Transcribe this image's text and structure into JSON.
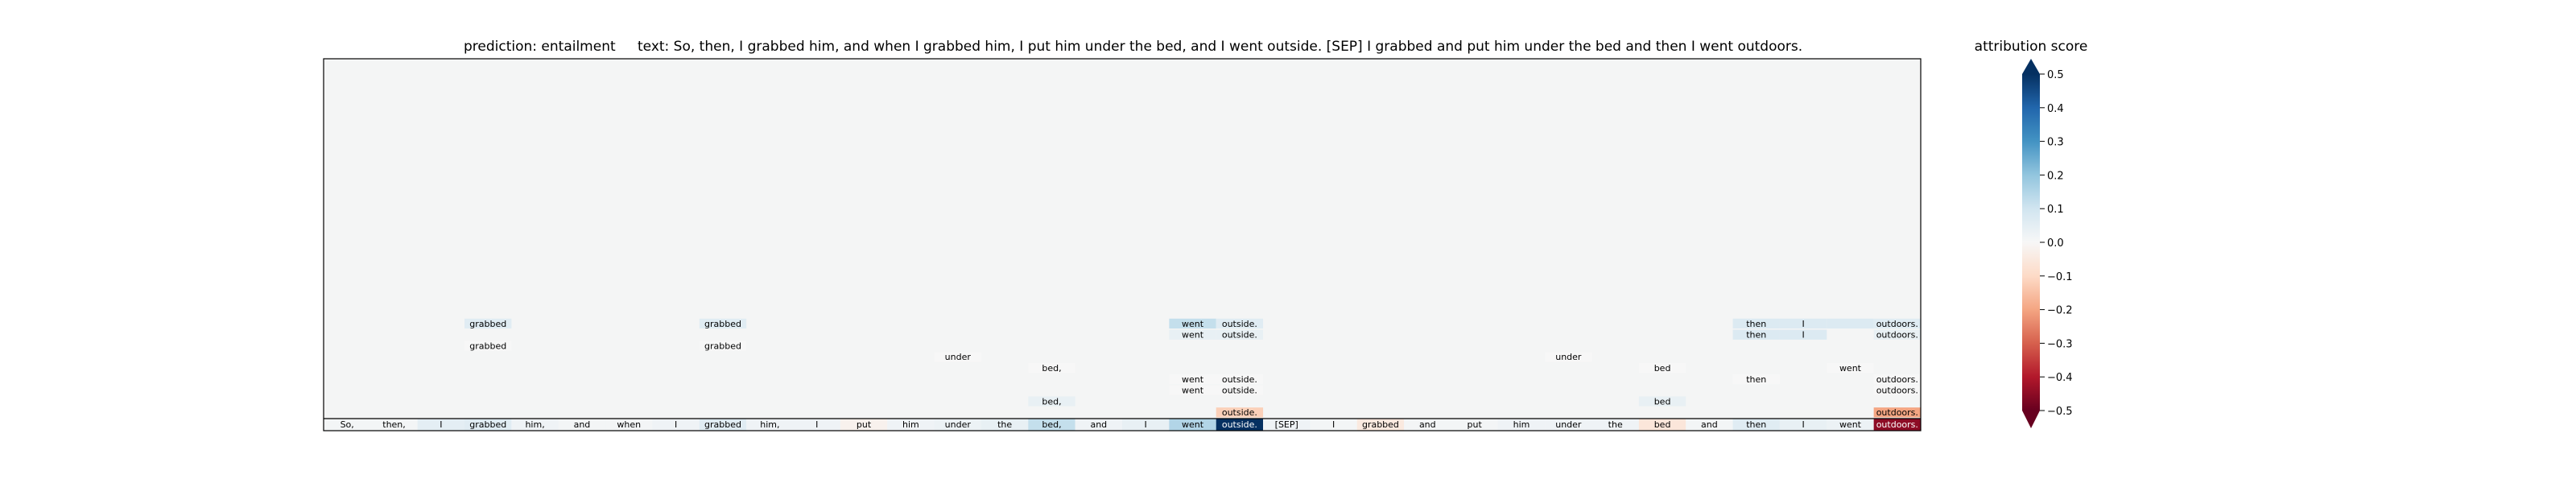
{
  "chart_data": {
    "type": "heatmap",
    "title_prediction": "prediction:  entailment",
    "title_text": "text:  So, then, I grabbed him, and when I grabbed him, I put him under the bed, and I went outside. [SEP] I grabbed and put him under the bed and then I went outdoors.",
    "colorbar_label": "attribution score",
    "colorbar_range": [
      -0.5,
      0.5
    ],
    "colorbar_ticks": [
      0.5,
      0.4,
      0.3,
      0.2,
      0.1,
      0.0,
      -0.1,
      -0.2,
      -0.3,
      -0.4,
      -0.5
    ],
    "colorbar_tick_labels": [
      "0.5",
      "0.4",
      "0.3",
      "0.2",
      "0.1",
      "0.0",
      "−0.1",
      "−0.2",
      "−0.3",
      "−0.4",
      "−0.5"
    ],
    "colormap": "RdBu",
    "empty_color": "#f4f5f5",
    "tokens": [
      "So,",
      "then,",
      "I",
      "grabbed",
      "him,",
      "and",
      "when",
      "I",
      "grabbed",
      "him,",
      "I",
      "put",
      "him",
      "under",
      "the",
      "bed,",
      "and",
      "I",
      "went",
      "outside.",
      "[SEP]",
      "I",
      "grabbed",
      "and",
      "put",
      "him",
      "under",
      "the",
      "bed",
      "and",
      "then",
      "I",
      "went",
      "outdoors."
    ],
    "token_scores": [
      0.01,
      0.01,
      0.05,
      0.06,
      0.02,
      0.01,
      0.01,
      0.02,
      0.06,
      0.02,
      0.02,
      -0.02,
      0.02,
      0.03,
      0.04,
      0.12,
      0.02,
      0.04,
      0.15,
      0.5,
      0.02,
      0.01,
      -0.05,
      0.01,
      0.01,
      0.02,
      0.02,
      0.02,
      -0.06,
      0.01,
      0.06,
      0.04,
      0.03,
      -0.45
    ],
    "layer_tokens": [
      {
        "row": 1,
        "col": 19,
        "text": "outside.",
        "score": -0.12
      },
      {
        "row": 1,
        "col": 33,
        "text": "outdoors.",
        "score": -0.2
      },
      {
        "row": 2,
        "col": 15,
        "text": "bed,",
        "score": 0.04
      },
      {
        "row": 2,
        "col": 28,
        "text": "bed",
        "score": 0.04
      },
      {
        "row": 3,
        "col": 19,
        "text": "outside.",
        "score": 0.0
      },
      {
        "row": 3,
        "col": 33,
        "text": "outdoors.",
        "score": 0.0
      },
      {
        "row": 3,
        "col": 18,
        "text": "went",
        "score": 0.0
      },
      {
        "row": 4,
        "col": 19,
        "text": "outside.",
        "score": 0.0
      },
      {
        "row": 4,
        "col": 33,
        "text": "outdoors.",
        "score": 0.0
      },
      {
        "row": 4,
        "col": 18,
        "text": "went",
        "score": 0.0
      },
      {
        "row": 4,
        "col": 30,
        "text": "then",
        "score": 0.0
      },
      {
        "row": 5,
        "col": 15,
        "text": "bed,",
        "score": 0.0
      },
      {
        "row": 5,
        "col": 28,
        "text": "bed",
        "score": 0.0
      },
      {
        "row": 5,
        "col": 32,
        "text": "went",
        "score": 0.0
      },
      {
        "row": 6,
        "col": 13,
        "text": "under",
        "score": 0.0
      },
      {
        "row": 6,
        "col": 26,
        "text": "under",
        "score": 0.0
      },
      {
        "row": 7,
        "col": 3,
        "text": "grabbed",
        "score": 0.0
      },
      {
        "row": 7,
        "col": 8,
        "text": "grabbed",
        "score": 0.0
      },
      {
        "row": 8,
        "col": 19,
        "text": "outside.",
        "score": 0.04
      },
      {
        "row": 8,
        "col": 33,
        "text": "outdoors.",
        "score": 0.04
      },
      {
        "row": 8,
        "col": 18,
        "text": "went",
        "score": 0.04
      },
      {
        "row": 8,
        "col": 30,
        "text": "then",
        "score": 0.07
      },
      {
        "row": 8,
        "col": 31,
        "text": "I",
        "score": 0.07
      },
      {
        "row": 9,
        "col": 3,
        "text": "grabbed",
        "score": 0.06
      },
      {
        "row": 9,
        "col": 8,
        "text": "grabbed",
        "score": 0.06
      },
      {
        "row": 9,
        "col": 18,
        "text": "went",
        "score": 0.12
      },
      {
        "row": 9,
        "col": 19,
        "text": "outside.",
        "score": 0.06
      },
      {
        "row": 9,
        "col": 30,
        "text": "then",
        "score": 0.07
      },
      {
        "row": 9,
        "col": 31,
        "text": "I",
        "score": 0.07
      },
      {
        "row": 9,
        "col": 32,
        "text": "",
        "score": 0.07
      },
      {
        "row": 9,
        "col": 33,
        "text": "outdoors.",
        "score": 0.06
      }
    ]
  }
}
